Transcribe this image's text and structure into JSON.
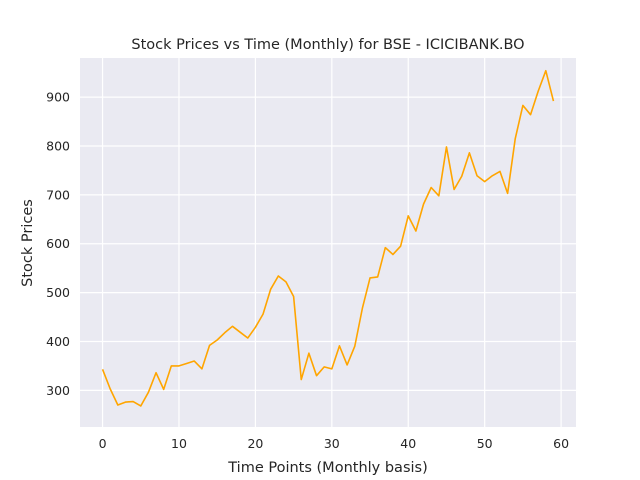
{
  "chart_data": {
    "type": "line",
    "title": "Stock Prices vs Time (Monthly) for BSE - ICICIBANK.BO",
    "xlabel": "Time Points (Monthly basis)",
    "ylabel": "Stock Prices",
    "xlim": [
      -2.95,
      61.95
    ],
    "ylim": [
      225,
      980
    ],
    "xticks": [
      0,
      10,
      20,
      30,
      40,
      50,
      60
    ],
    "yticks": [
      300,
      400,
      500,
      600,
      700,
      800,
      900
    ],
    "grid": true,
    "legend": "none",
    "colors": {
      "background": "#eaeaf2",
      "grid": "#ffffff",
      "line": "#ffa500",
      "text": "#262626"
    },
    "series": [
      {
        "x": [
          0,
          1,
          2,
          3,
          4,
          5,
          6,
          7,
          8,
          9,
          10,
          11,
          12,
          13,
          14,
          15,
          16,
          17,
          18,
          19,
          20,
          21,
          22,
          23,
          24,
          25,
          26,
          27,
          28,
          29,
          30,
          31,
          32,
          33,
          34,
          35,
          36,
          37,
          38,
          39,
          40,
          41,
          42,
          43,
          44,
          45,
          46,
          47,
          48,
          49,
          50,
          51,
          52,
          53,
          54,
          55,
          56,
          57,
          58,
          59
        ],
        "values": [
          343,
          303,
          270,
          276,
          277,
          268,
          296,
          336,
          302,
          350,
          350,
          355,
          360,
          344,
          392,
          403,
          418,
          431,
          419,
          407,
          429,
          456,
          507,
          534,
          522,
          492,
          322,
          376,
          330,
          348,
          344,
          391,
          352,
          390,
          468,
          530,
          532,
          592,
          578,
          595,
          657,
          626,
          681,
          715,
          698,
          798,
          711,
          738,
          786,
          739,
          727,
          739,
          748,
          703,
          815,
          883,
          864,
          912,
          954,
          892
        ]
      }
    ]
  }
}
